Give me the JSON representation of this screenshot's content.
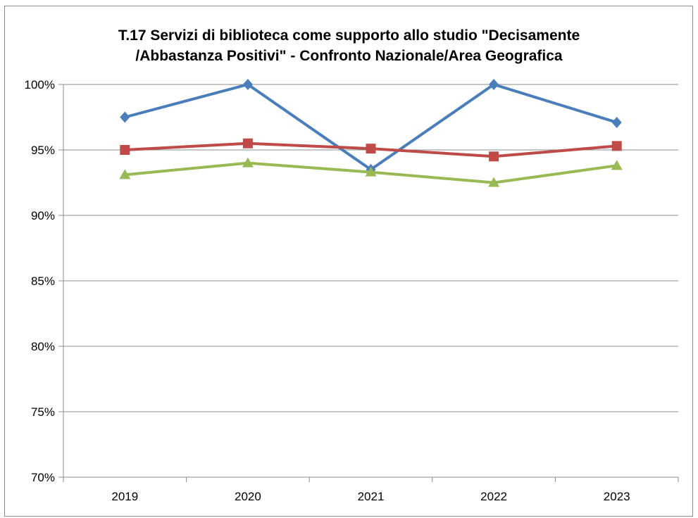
{
  "chart_data": {
    "type": "line",
    "title_lines": [
      "T.17 Servizi di biblioteca come supporto allo studio \"Decisamente",
      "/Abbastanza Positivi\" - Confronto Nazionale/Area Geografica"
    ],
    "categories": [
      "2019",
      "2020",
      "2021",
      "2022",
      "2023"
    ],
    "y_ticks": [
      "70%",
      "75%",
      "80%",
      "85%",
      "90%",
      "95%",
      "100%"
    ],
    "ylim": [
      70,
      100
    ],
    "y_unit": "%",
    "grid": true,
    "legend": "none",
    "series": [
      {
        "values": [
          97.5,
          100,
          93.5,
          100,
          97.1
        ],
        "color": "#4a7ebb",
        "marker": "diamond"
      },
      {
        "values": [
          95.0,
          95.5,
          95.1,
          94.5,
          95.3
        ],
        "color": "#be4b48",
        "marker": "square"
      },
      {
        "values": [
          93.1,
          94.0,
          93.3,
          92.5,
          93.8
        ],
        "color": "#98b954",
        "marker": "triangle"
      }
    ]
  }
}
